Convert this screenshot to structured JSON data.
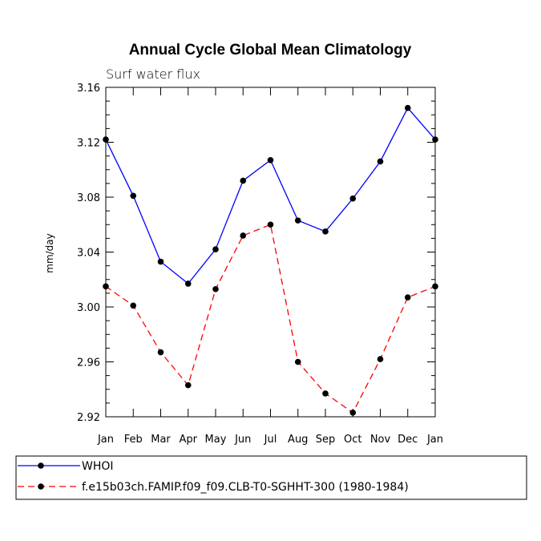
{
  "chart_data": {
    "type": "line",
    "title": "Annual Cycle Global Mean Climatology",
    "subtitle": "Surf water flux",
    "xlabel": "",
    "ylabel": "mm/day",
    "categories": [
      "Jan",
      "Feb",
      "Mar",
      "Apr",
      "May",
      "Jun",
      "Jul",
      "Aug",
      "Sep",
      "Oct",
      "Nov",
      "Dec",
      "Jan"
    ],
    "ylim": [
      2.92,
      3.16
    ],
    "yticks": [
      "2.92",
      "2.96",
      "3.00",
      "3.04",
      "3.08",
      "3.12",
      "3.16"
    ],
    "grid": false,
    "legend_position": "bottom-left",
    "series": [
      {
        "name": "WHOI",
        "color": "#0000ff",
        "dash": "solid",
        "values": [
          3.122,
          3.081,
          3.033,
          3.017,
          3.042,
          3.092,
          3.107,
          3.063,
          3.055,
          3.079,
          3.106,
          3.145,
          3.122
        ]
      },
      {
        "name": "f.e15b03ch.FAMIP.f09_f09.CLB-T0-SGHHT-300 (1980-1984)",
        "color": "#ff0000",
        "dash": "dashed",
        "values": [
          3.015,
          3.001,
          2.967,
          2.943,
          3.013,
          3.052,
          3.06,
          2.96,
          2.937,
          2.923,
          2.962,
          3.007,
          3.015
        ]
      }
    ]
  }
}
